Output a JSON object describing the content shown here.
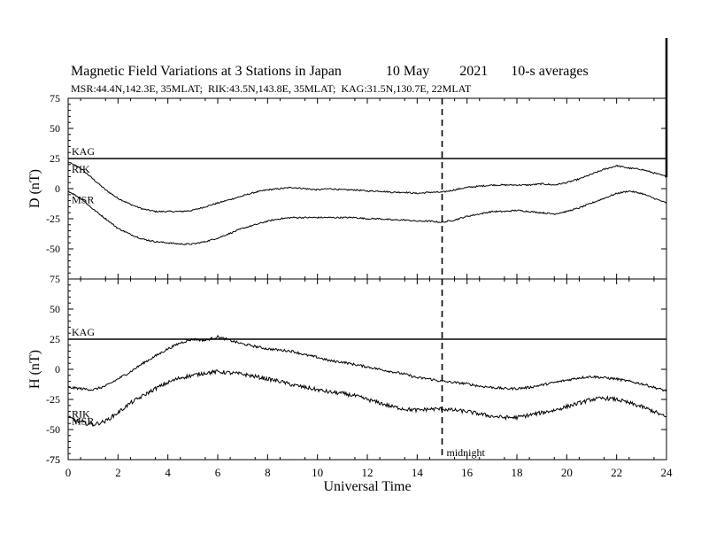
{
  "header": {
    "title": "Magnetic Field Variations at 3 Stations in Japan",
    "date": "10 May",
    "year": "2021",
    "averaging": "10-s averages",
    "stations_line": "MSR:44.4N,142.3E, 35MLAT;  RIK:43.5N,143.8E, 35MLAT;  KAG:31.5N,130.7E, 22MLAT"
  },
  "chart_data": {
    "type": "line",
    "xlabel": "Universal Time",
    "xlim": [
      0,
      24
    ],
    "x_ticks": [
      "0",
      "2",
      "4",
      "6",
      "8",
      "10",
      "12",
      "14",
      "16",
      "18",
      "20",
      "22",
      "24"
    ],
    "grid": false,
    "annotation": {
      "x": 15,
      "text": "midnight",
      "style": "dashed vertical line"
    },
    "panels": [
      {
        "name": "D",
        "ylabel": "D (nT)",
        "ylim": [
          -75,
          75
        ],
        "y_ticks": [
          "75",
          "50",
          "25",
          "0",
          "-25",
          "-50",
          "-75"
        ],
        "series": [
          {
            "name": "KAG",
            "x": [
              0,
              24
            ],
            "values": [
              25,
              25
            ]
          },
          {
            "name": "RIK",
            "x": [
              0,
              0.5,
              1,
              1.5,
              2,
              2.5,
              3,
              3.5,
              4,
              4.5,
              5,
              5.5,
              6,
              6.5,
              7,
              7.5,
              8,
              8.5,
              9,
              9.5,
              10,
              10.5,
              11,
              11.5,
              12,
              12.5,
              13,
              13.5,
              14,
              14.5,
              15,
              15.5,
              16,
              16.5,
              17,
              17.5,
              18,
              18.5,
              19,
              19.5,
              20,
              20.5,
              21,
              21.5,
              22,
              22.5,
              23,
              23.5,
              24
            ],
            "values": [
              22,
              17,
              8,
              -1,
              -8,
              -13,
              -17,
              -19,
              -19,
              -19,
              -18,
              -15,
              -12,
              -9,
              -6,
              -3,
              -1,
              0,
              1,
              0,
              -1,
              0,
              -1,
              -1,
              -2,
              -2,
              -3,
              -3,
              -4,
              -3,
              -3,
              -1,
              1,
              2,
              3,
              3,
              3,
              3,
              4,
              3,
              5,
              8,
              12,
              16,
              19,
              17,
              16,
              13,
              10
            ]
          },
          {
            "name": "MSR",
            "x": [
              0,
              0.5,
              1,
              1.5,
              2,
              2.5,
              3,
              3.5,
              4,
              4.5,
              5,
              5.5,
              6,
              6.5,
              7,
              7.5,
              8,
              8.5,
              9,
              9.5,
              10,
              10.5,
              11,
              11.5,
              12,
              12.5,
              13,
              13.5,
              14,
              14.5,
              15,
              15.5,
              16,
              16.5,
              17,
              17.5,
              18,
              18.5,
              19,
              19.5,
              20,
              20.5,
              21,
              21.5,
              22,
              22.5,
              23,
              23.5,
              24
            ],
            "values": [
              -2,
              -8,
              -17,
              -25,
              -33,
              -38,
              -42,
              -44,
              -45,
              -46,
              -46,
              -44,
              -41,
              -37,
              -33,
              -30,
              -27,
              -25,
              -24,
              -24,
              -24,
              -24,
              -24,
              -24,
              -25,
              -25,
              -26,
              -26,
              -27,
              -27,
              -28,
              -26,
              -23,
              -21,
              -19,
              -19,
              -18,
              -19,
              -20,
              -21,
              -19,
              -16,
              -12,
              -8,
              -4,
              -2,
              -4,
              -8,
              -12
            ]
          }
        ],
        "labels": [
          "KAG",
          "RIK",
          "MSR"
        ]
      },
      {
        "name": "H",
        "ylabel": "H (nT)",
        "ylim": [
          -75,
          75
        ],
        "y_ticks": [
          "75",
          "50",
          "25",
          "0",
          "-25",
          "-50",
          "-75"
        ],
        "series": [
          {
            "name": "KAG",
            "x": [
              0,
              24
            ],
            "values": [
              25,
              25
            ]
          },
          {
            "name": "RIK",
            "x": [
              0,
              0.5,
              1,
              1.5,
              2,
              2.5,
              3,
              3.5,
              4,
              4.5,
              5,
              5.5,
              6,
              6.5,
              7,
              7.5,
              8,
              8.5,
              9,
              9.5,
              10,
              10.5,
              11,
              11.5,
              12,
              12.5,
              13,
              13.5,
              14,
              14.5,
              15,
              15.5,
              16,
              16.5,
              17,
              17.5,
              18,
              18.5,
              19,
              19.5,
              20,
              20.5,
              21,
              21.5,
              22,
              22.5,
              23,
              23.5,
              24
            ],
            "values": [
              -15,
              -16,
              -17,
              -14,
              -8,
              -2,
              5,
              11,
              17,
              22,
              25,
              24,
              27,
              24,
              21,
              19,
              17,
              16,
              15,
              12,
              10,
              7,
              6,
              4,
              2,
              0,
              -2,
              -4,
              -7,
              -8,
              -10,
              -11,
              -12,
              -14,
              -15,
              -16,
              -16,
              -15,
              -13,
              -11,
              -9,
              -7,
              -6,
              -7,
              -8,
              -10,
              -12,
              -15,
              -18
            ]
          },
          {
            "name": "MSR",
            "x": [
              0,
              0.5,
              1,
              1.5,
              2,
              2.5,
              3,
              3.5,
              4,
              4.5,
              5,
              5.5,
              6,
              6.5,
              7,
              7.5,
              8,
              8.5,
              9,
              9.5,
              10,
              10.5,
              11,
              11.5,
              12,
              12.5,
              13,
              13.5,
              14,
              14.5,
              15,
              15.5,
              16,
              16.5,
              17,
              17.5,
              18,
              18.5,
              19,
              19.5,
              20,
              20.5,
              21,
              21.5,
              22,
              22.5,
              23,
              23.5,
              24
            ],
            "values": [
              -40,
              -44,
              -46,
              -43,
              -36,
              -28,
              -22,
              -16,
              -11,
              -7,
              -5,
              -3,
              -2,
              -3,
              -4,
              -6,
              -8,
              -10,
              -13,
              -15,
              -17,
              -19,
              -20,
              -22,
              -25,
              -28,
              -31,
              -33,
              -34,
              -33,
              -33,
              -34,
              -35,
              -37,
              -39,
              -40,
              -40,
              -38,
              -36,
              -34,
              -31,
              -28,
              -25,
              -24,
              -25,
              -28,
              -31,
              -35,
              -40
            ]
          }
        ],
        "labels": [
          "KAG",
          "RIK",
          "MSR"
        ]
      }
    ]
  }
}
